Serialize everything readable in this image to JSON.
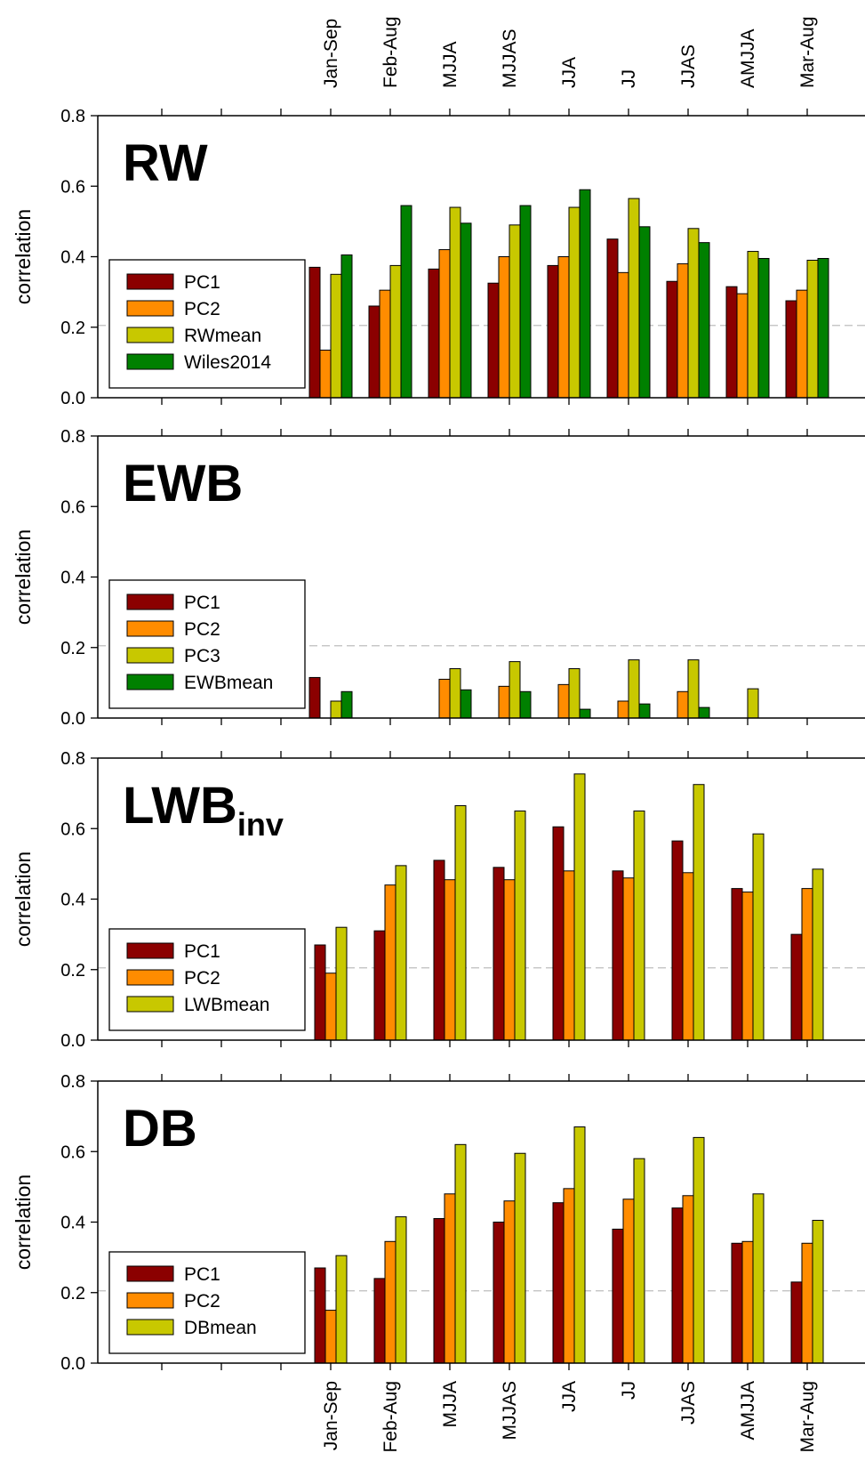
{
  "chart_data": [
    {
      "type": "bar",
      "panel_label": "RW",
      "panel_label_sub": "",
      "ylabel": "correlation",
      "ylim": [
        0,
        0.8
      ],
      "yticks": [
        "0.0",
        "0.2",
        "0.4",
        "0.6",
        "0.8"
      ],
      "significance_line": 0.205,
      "legend_position": "bottom-left",
      "categories": [
        "Jan-Sep",
        "Feb-Aug",
        "MJJA",
        "MJJAS",
        "JJA",
        "JJ",
        "JJAS",
        "AMJJA",
        "Mar-Aug"
      ],
      "series": [
        {
          "name": "PC1",
          "color": "#8b0000",
          "values": [
            0.37,
            0.26,
            0.365,
            0.325,
            0.375,
            0.45,
            0.33,
            0.315,
            0.275
          ]
        },
        {
          "name": "PC2",
          "color": "#ff8c00",
          "values": [
            0.135,
            0.305,
            0.42,
            0.4,
            0.4,
            0.355,
            0.38,
            0.295,
            0.305
          ]
        },
        {
          "name": "RWmean",
          "color": "#c8c800",
          "values": [
            0.35,
            0.375,
            0.54,
            0.49,
            0.54,
            0.565,
            0.48,
            0.415,
            0.39
          ]
        },
        {
          "name": "Wiles2014",
          "color": "#008000",
          "values": [
            0.405,
            0.545,
            0.495,
            0.545,
            0.59,
            0.485,
            0.44,
            0.395,
            0.395
          ]
        }
      ]
    },
    {
      "type": "bar",
      "panel_label": "EWB",
      "panel_label_sub": "",
      "ylabel": "correlation",
      "ylim": [
        0,
        0.8
      ],
      "yticks": [
        "0.0",
        "0.2",
        "0.4",
        "0.6",
        "0.8"
      ],
      "significance_line": 0.205,
      "legend_position": "bottom-left",
      "categories": [
        "Jan-Sep",
        "Feb-Aug",
        "MJJA",
        "MJJAS",
        "JJA",
        "JJ",
        "JJAS",
        "AMJJA",
        "Mar-Aug"
      ],
      "series": [
        {
          "name": "PC1",
          "color": "#8b0000",
          "values": [
            0.115,
            0,
            0,
            0,
            0,
            0,
            0,
            0,
            0
          ]
        },
        {
          "name": "PC2",
          "color": "#ff8c00",
          "values": [
            0,
            0,
            0.11,
            0.09,
            0.095,
            0.048,
            0.075,
            0,
            0
          ]
        },
        {
          "name": "PC3",
          "color": "#c8c800",
          "values": [
            0.048,
            0,
            0.14,
            0.16,
            0.14,
            0.165,
            0.165,
            0.083,
            0
          ]
        },
        {
          "name": "EWBmean",
          "color": "#008000",
          "values": [
            0.075,
            0,
            0.08,
            0.075,
            0.025,
            0.04,
            0.03,
            0,
            0
          ]
        }
      ]
    },
    {
      "type": "bar",
      "panel_label": "LWB",
      "panel_label_sub": "inv",
      "ylabel": "correlation",
      "ylim": [
        0,
        0.8
      ],
      "yticks": [
        "0.0",
        "0.2",
        "0.4",
        "0.6",
        "0.8"
      ],
      "significance_line": 0.205,
      "legend_position": "bottom-left",
      "categories": [
        "Jan-Sep",
        "Feb-Aug",
        "MJJA",
        "MJJAS",
        "JJA",
        "JJ",
        "JJAS",
        "AMJJA",
        "Mar-Aug"
      ],
      "series": [
        {
          "name": "PC1",
          "color": "#8b0000",
          "values": [
            0.27,
            0.31,
            0.51,
            0.49,
            0.605,
            0.48,
            0.565,
            0.43,
            0.3
          ]
        },
        {
          "name": "PC2",
          "color": "#ff8c00",
          "values": [
            0.19,
            0.44,
            0.455,
            0.455,
            0.48,
            0.46,
            0.475,
            0.42,
            0.43
          ]
        },
        {
          "name": "LWBmean",
          "color": "#c8c800",
          "values": [
            0.32,
            0.495,
            0.665,
            0.65,
            0.755,
            0.65,
            0.725,
            0.585,
            0.485
          ]
        }
      ]
    },
    {
      "type": "bar",
      "panel_label": "DB",
      "panel_label_sub": "",
      "ylabel": "correlation",
      "ylim": [
        0,
        0.8
      ],
      "yticks": [
        "0.0",
        "0.2",
        "0.4",
        "0.6",
        "0.8"
      ],
      "significance_line": 0.205,
      "legend_position": "bottom-left",
      "categories": [
        "Jan-Sep",
        "Feb-Aug",
        "MJJA",
        "MJJAS",
        "JJA",
        "JJ",
        "JJAS",
        "AMJJA",
        "Mar-Aug"
      ],
      "series": [
        {
          "name": "PC1",
          "color": "#8b0000",
          "values": [
            0.27,
            0.24,
            0.41,
            0.4,
            0.455,
            0.38,
            0.44,
            0.34,
            0.23
          ]
        },
        {
          "name": "PC2",
          "color": "#ff8c00",
          "values": [
            0.15,
            0.345,
            0.48,
            0.46,
            0.495,
            0.465,
            0.475,
            0.345,
            0.34
          ]
        },
        {
          "name": "DBmean",
          "color": "#c8c800",
          "values": [
            0.305,
            0.415,
            0.62,
            0.595,
            0.67,
            0.58,
            0.64,
            0.48,
            0.405
          ]
        }
      ]
    }
  ]
}
